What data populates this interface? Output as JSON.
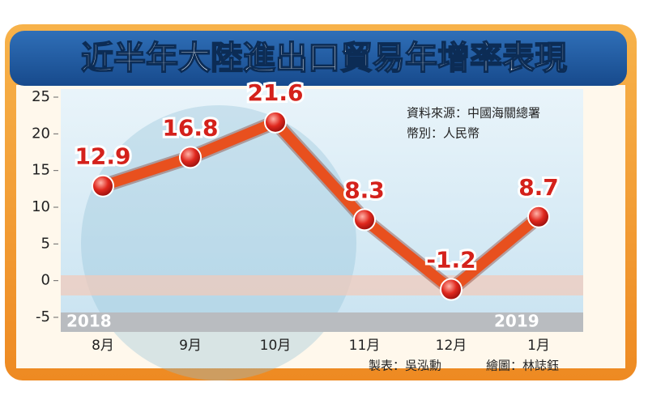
{
  "chart_data": {
    "type": "line",
    "title": "近半年大陸進出口貿易年增率表現",
    "categories": [
      "8月",
      "9月",
      "10月",
      "11月",
      "12月",
      "1月"
    ],
    "values": [
      12.9,
      16.8,
      21.6,
      8.3,
      -1.2,
      8.7
    ],
    "color": "#e8501e",
    "ylim": [
      -5,
      25
    ],
    "yticks": [
      -5,
      0,
      5,
      10,
      15,
      20,
      25
    ],
    "annotations": [
      "資料來源：中國海關總署",
      "幣別：人民幣"
    ],
    "year_labels": [
      "2018",
      "2019"
    ],
    "credits": [
      "製表：吳泓勳",
      "繪圖：林誌鈺"
    ]
  }
}
